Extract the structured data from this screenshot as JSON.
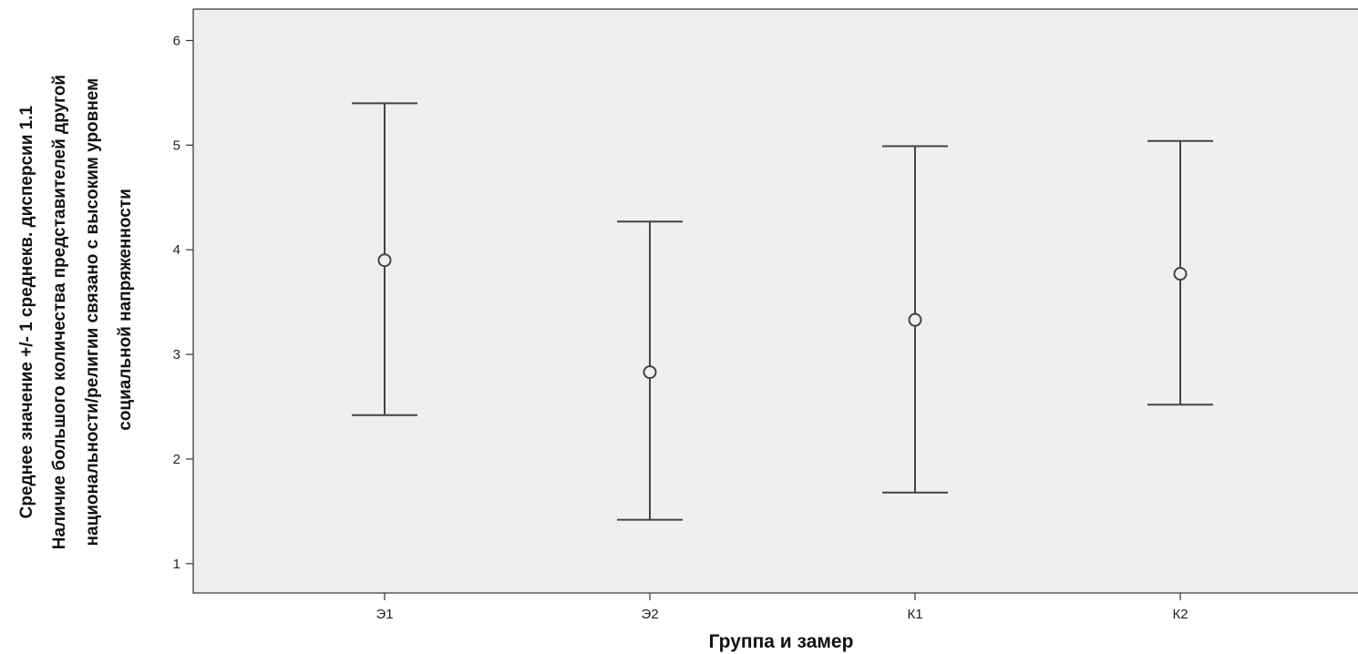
{
  "chart_data": {
    "type": "errorbar",
    "categories": [
      "Э1",
      "Э2",
      "К1",
      "К2"
    ],
    "series": [
      {
        "means": [
          3.9,
          2.83,
          3.33,
          3.77
        ],
        "lower": [
          2.42,
          1.42,
          1.68,
          2.52
        ],
        "upper": [
          5.4,
          4.27,
          4.99,
          5.04
        ]
      }
    ],
    "xlabel": "Группа и замер",
    "ylabel_lines": [
      "Среднее значение +/- 1 среднекв. дисперсии 1.1",
      "Наличие большого количества представителей другой",
      "национальности/религии связано с высоким уровнем",
      "социальной напряженности"
    ],
    "yticks": [
      "1",
      "2",
      "3",
      "4",
      "5",
      "6"
    ],
    "ylim": [
      0.72,
      6.3
    ],
    "grid": false,
    "plot_background": "#efefef",
    "line_color": "#444444"
  }
}
